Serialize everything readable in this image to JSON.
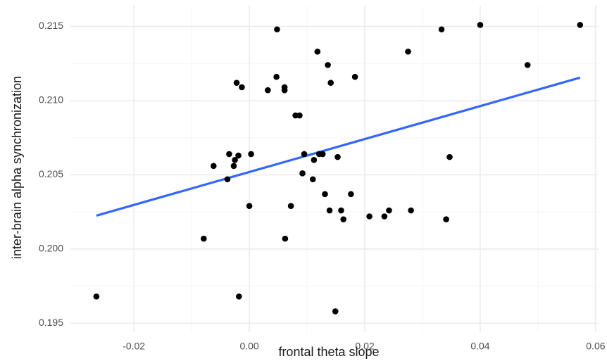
{
  "chart_data": {
    "type": "scatter",
    "title": "",
    "xlabel": "frontal theta slope",
    "ylabel": "inter-brain alpha synchronization",
    "xlim": [
      -0.031,
      0.0605
    ],
    "ylim": [
      0.1944,
      0.2164
    ],
    "x_ticks": [
      -0.02,
      0.0,
      0.02,
      0.04,
      0.06
    ],
    "x_tick_labels": [
      "-0.02",
      "0.00",
      "0.02",
      "0.04",
      "0.06"
    ],
    "y_ticks": [
      0.195,
      0.2,
      0.205,
      0.21,
      0.215
    ],
    "y_tick_labels": [
      "0.195",
      "0.200",
      "0.205",
      "0.210",
      "0.215"
    ],
    "grid": true,
    "colors": {
      "points": "#000000",
      "trend": "#3366ff",
      "grid_major": "#ebebeb",
      "grid_minor": "#f5f5f5"
    },
    "trend_line": {
      "x": [
        -0.0265,
        0.0573
      ],
      "y": [
        0.20225,
        0.21155
      ]
    },
    "points": [
      {
        "x": -0.0265,
        "y": 0.1968
      },
      {
        "x": -0.0079,
        "y": 0.2007
      },
      {
        "x": -0.0062,
        "y": 0.2056
      },
      {
        "x": -0.0038,
        "y": 0.2047
      },
      {
        "x": -0.0035,
        "y": 0.2064
      },
      {
        "x": -0.0027,
        "y": 0.2056
      },
      {
        "x": -0.0025,
        "y": 0.206
      },
      {
        "x": -0.0022,
        "y": 0.2112
      },
      {
        "x": -0.0019,
        "y": 0.2063
      },
      {
        "x": -0.0018,
        "y": 0.1968
      },
      {
        "x": -0.0013,
        "y": 0.2109
      },
      {
        "x": 0.0,
        "y": 0.2029
      },
      {
        "x": 0.0003,
        "y": 0.2064
      },
      {
        "x": 0.0032,
        "y": 0.2107
      },
      {
        "x": 0.0047,
        "y": 0.2116
      },
      {
        "x": 0.0048,
        "y": 0.2148
      },
      {
        "x": 0.0061,
        "y": 0.2109
      },
      {
        "x": 0.0061,
        "y": 0.2107
      },
      {
        "x": 0.0062,
        "y": 0.2007
      },
      {
        "x": 0.0072,
        "y": 0.2029
      },
      {
        "x": 0.008,
        "y": 0.209
      },
      {
        "x": 0.0087,
        "y": 0.209
      },
      {
        "x": 0.0092,
        "y": 0.2051
      },
      {
        "x": 0.0095,
        "y": 0.2064
      },
      {
        "x": 0.011,
        "y": 0.2047
      },
      {
        "x": 0.0112,
        "y": 0.206
      },
      {
        "x": 0.0118,
        "y": 0.2133
      },
      {
        "x": 0.0121,
        "y": 0.2064
      },
      {
        "x": 0.0127,
        "y": 0.2064
      },
      {
        "x": 0.0131,
        "y": 0.2037
      },
      {
        "x": 0.0136,
        "y": 0.2124
      },
      {
        "x": 0.0139,
        "y": 0.2026
      },
      {
        "x": 0.0141,
        "y": 0.2112
      },
      {
        "x": 0.0149,
        "y": 0.1958
      },
      {
        "x": 0.0153,
        "y": 0.2062
      },
      {
        "x": 0.0159,
        "y": 0.2026
      },
      {
        "x": 0.0163,
        "y": 0.202
      },
      {
        "x": 0.0176,
        "y": 0.2037
      },
      {
        "x": 0.0183,
        "y": 0.2116
      },
      {
        "x": 0.0208,
        "y": 0.2022
      },
      {
        "x": 0.0234,
        "y": 0.2022
      },
      {
        "x": 0.0242,
        "y": 0.2026
      },
      {
        "x": 0.0275,
        "y": 0.2133
      },
      {
        "x": 0.028,
        "y": 0.2026
      },
      {
        "x": 0.0333,
        "y": 0.2148
      },
      {
        "x": 0.0341,
        "y": 0.202
      },
      {
        "x": 0.0347,
        "y": 0.2062
      },
      {
        "x": 0.04,
        "y": 0.2151
      },
      {
        "x": 0.0482,
        "y": 0.2124
      },
      {
        "x": 0.0573,
        "y": 0.2151
      }
    ]
  }
}
